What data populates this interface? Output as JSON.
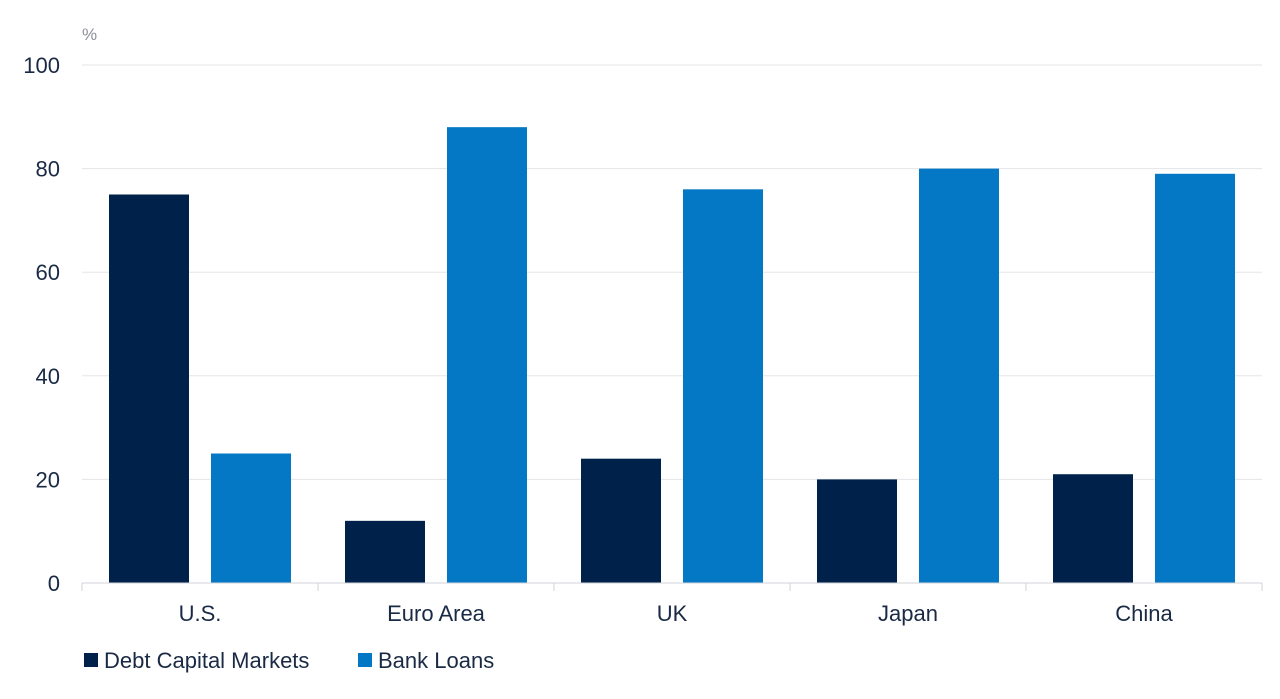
{
  "chart_data": {
    "type": "bar",
    "unit_label": "%",
    "categories": [
      "U.S.",
      "Euro Area",
      "UK",
      "Japan",
      "China"
    ],
    "series": [
      {
        "name": "Debt Capital Markets",
        "color": "#00214a",
        "values": [
          75,
          12,
          24,
          20,
          21
        ]
      },
      {
        "name": "Bank Loans",
        "color": "#0478c4",
        "values": [
          25,
          88,
          76,
          80,
          79
        ]
      }
    ],
    "ylim": [
      0,
      100
    ],
    "yticks": [
      0,
      20,
      40,
      60,
      80,
      100
    ],
    "grid": true,
    "legend_position": "bottom-left"
  }
}
